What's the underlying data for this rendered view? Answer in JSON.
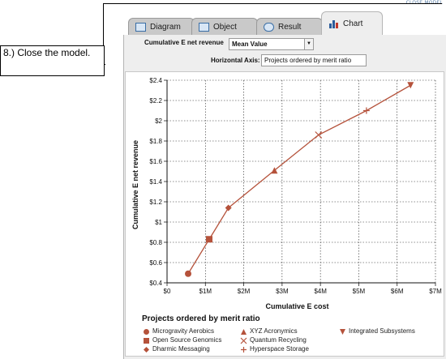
{
  "close_hint": "CLOSE MODEL",
  "callout": {
    "text": "8.) Close the model."
  },
  "tabs": [
    {
      "label": "Diagram",
      "icon": "diagram-icon"
    },
    {
      "label": "Object",
      "icon": "object-icon"
    },
    {
      "label": "Result",
      "icon": "result-icon"
    },
    {
      "label": "Chart",
      "icon": "chart-icon",
      "active": true
    }
  ],
  "controls": {
    "variable_label": "Cumulative E net revenue",
    "variable_value": "Mean Value",
    "horizontal_label": "Horizontal Axis:",
    "horizontal_value": "Projects ordered by merit ratio"
  },
  "chart_data": {
    "type": "line",
    "xlabel": "Cumulative  E cost",
    "ylabel": "Cumulative E net revenue",
    "x_ticks": [
      "$0",
      "$1M",
      "$2M",
      "$3M",
      "$4M",
      "$5M",
      "$6M",
      "$7M"
    ],
    "y_ticks": [
      "$0.4",
      "$0.6",
      "$0.8",
      "$1",
      "$1.2",
      "$1.4",
      "$1.6",
      "$1.8",
      "$2",
      "$2.2",
      "$2.4"
    ],
    "xlim": [
      0,
      7
    ],
    "ylim": [
      0.4,
      2.4
    ],
    "grid": true,
    "line_color": "#b5523b",
    "series": [
      {
        "x": [
          0.55,
          1.1,
          1.6,
          2.8,
          3.95,
          5.2,
          6.35
        ],
        "y": [
          0.49,
          0.83,
          1.14,
          1.51,
          1.86,
          2.1,
          2.35
        ],
        "markers": [
          "circle",
          "square",
          "diamond",
          "triangle-up",
          "x",
          "plus",
          "triangle-down"
        ]
      }
    ],
    "legend": {
      "title": "Projects ordered by merit ratio",
      "placement": "bottom",
      "entries": [
        {
          "label": "Microgravity Aerobics",
          "marker": "circle"
        },
        {
          "label": "Open Source Genomics",
          "marker": "square"
        },
        {
          "label": "Dharmic Messaging",
          "marker": "diamond"
        },
        {
          "label": "XYZ Acronymics",
          "marker": "triangle-up"
        },
        {
          "label": "Quantum Recycling",
          "marker": "x"
        },
        {
          "label": "Hyperspace Storage",
          "marker": "plus"
        },
        {
          "label": "Integrated Subsystems",
          "marker": "triangle-down"
        }
      ]
    }
  }
}
